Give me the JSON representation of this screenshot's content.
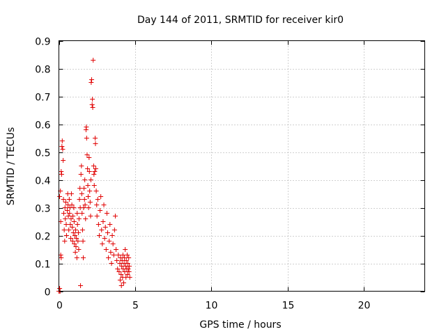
{
  "chart_data": {
    "type": "scatter",
    "title": "Day 144 of 2011, SRMTID for receiver kir0",
    "xlabel": "GPS time / hours",
    "ylabel": "SRMTID / TECUs",
    "xlim": [
      0,
      24
    ],
    "ylim": [
      0,
      0.9
    ],
    "xticks": [
      0,
      5,
      10,
      15,
      20
    ],
    "xtick_labels": [
      "0",
      "5",
      "10",
      "15",
      "20"
    ],
    "yticks": [
      0,
      0.1,
      0.2,
      0.3,
      0.4,
      0.5,
      0.6,
      0.7,
      0.8,
      0.9
    ],
    "ytick_labels": [
      "0",
      "0.1",
      "0.2",
      "0.3",
      "0.4",
      "0.5",
      "0.6",
      "0.7",
      "0.8",
      "0.9"
    ],
    "grid": true,
    "marker": "+",
    "color": "#e00000",
    "series": [
      {
        "name": "kir0",
        "points": [
          [
            0.0,
            0.0
          ],
          [
            0.02,
            0.0
          ],
          [
            0.05,
            0.01
          ],
          [
            0.08,
            0.0
          ],
          [
            0.05,
            0.34
          ],
          [
            0.1,
            0.36
          ],
          [
            0.12,
            0.25
          ],
          [
            0.15,
            0.43
          ],
          [
            0.18,
            0.42
          ],
          [
            0.2,
            0.52
          ],
          [
            0.22,
            0.54
          ],
          [
            0.25,
            0.51
          ],
          [
            0.28,
            0.47
          ],
          [
            0.3,
            0.33
          ],
          [
            0.32,
            0.28
          ],
          [
            0.35,
            0.22
          ],
          [
            0.38,
            0.18
          ],
          [
            0.12,
            0.13
          ],
          [
            0.15,
            0.12
          ],
          [
            0.4,
            0.3
          ],
          [
            0.42,
            0.26
          ],
          [
            0.45,
            0.32
          ],
          [
            0.48,
            0.24
          ],
          [
            0.5,
            0.2
          ],
          [
            0.55,
            0.29
          ],
          [
            0.58,
            0.35
          ],
          [
            0.6,
            0.31
          ],
          [
            0.62,
            0.27
          ],
          [
            0.65,
            0.22
          ],
          [
            0.68,
            0.33
          ],
          [
            0.7,
            0.28
          ],
          [
            0.72,
            0.3
          ],
          [
            0.75,
            0.24
          ],
          [
            0.78,
            0.19
          ],
          [
            0.8,
            0.26
          ],
          [
            0.82,
            0.35
          ],
          [
            0.85,
            0.31
          ],
          [
            0.88,
            0.23
          ],
          [
            0.9,
            0.18
          ],
          [
            0.92,
            0.27
          ],
          [
            0.95,
            0.21
          ],
          [
            0.98,
            0.3
          ],
          [
            1.0,
            0.25
          ],
          [
            1.02,
            0.17
          ],
          [
            1.05,
            0.2
          ],
          [
            1.08,
            0.14
          ],
          [
            1.1,
            0.22
          ],
          [
            1.12,
            0.16
          ],
          [
            1.15,
            0.19
          ],
          [
            1.18,
            0.12
          ],
          [
            1.2,
            0.28
          ],
          [
            1.22,
            0.24
          ],
          [
            1.25,
            0.18
          ],
          [
            1.28,
            0.21
          ],
          [
            1.3,
            0.15
          ],
          [
            1.32,
            0.26
          ],
          [
            1.35,
            0.33
          ],
          [
            1.38,
            0.37
          ],
          [
            1.4,
            0.3
          ],
          [
            1.42,
            0.02
          ],
          [
            1.45,
            0.42
          ],
          [
            1.48,
            0.45
          ],
          [
            1.5,
            0.35
          ],
          [
            1.52,
            0.28
          ],
          [
            1.55,
            0.22
          ],
          [
            1.58,
            0.18
          ],
          [
            1.6,
            0.12
          ],
          [
            1.62,
            0.3
          ],
          [
            1.65,
            0.37
          ],
          [
            1.68,
            0.33
          ],
          [
            1.7,
            0.4
          ],
          [
            1.72,
            0.31
          ],
          [
            1.75,
            0.26
          ],
          [
            1.78,
            0.58
          ],
          [
            1.8,
            0.59
          ],
          [
            1.82,
            0.55
          ],
          [
            1.85,
            0.49
          ],
          [
            1.88,
            0.44
          ],
          [
            1.9,
            0.38
          ],
          [
            1.92,
            0.34
          ],
          [
            1.95,
            0.3
          ],
          [
            1.98,
            0.48
          ],
          [
            2.0,
            0.43
          ],
          [
            2.02,
            0.36
          ],
          [
            2.05,
            0.32
          ],
          [
            2.08,
            0.27
          ],
          [
            2.1,
            0.4
          ],
          [
            2.12,
            0.75
          ],
          [
            2.15,
            0.76
          ],
          [
            2.18,
            0.67
          ],
          [
            2.2,
            0.69
          ],
          [
            2.22,
            0.66
          ],
          [
            2.25,
            0.83
          ],
          [
            2.28,
            0.45
          ],
          [
            2.3,
            0.42
          ],
          [
            2.32,
            0.38
          ],
          [
            2.35,
            0.43
          ],
          [
            2.38,
            0.55
          ],
          [
            2.4,
            0.53
          ],
          [
            2.42,
            0.44
          ],
          [
            2.45,
            0.36
          ],
          [
            2.48,
            0.31
          ],
          [
            2.5,
            0.27
          ],
          [
            2.55,
            0.33
          ],
          [
            2.6,
            0.24
          ],
          [
            2.65,
            0.2
          ],
          [
            2.7,
            0.29
          ],
          [
            2.75,
            0.34
          ],
          [
            2.8,
            0.22
          ],
          [
            2.85,
            0.17
          ],
          [
            2.9,
            0.25
          ],
          [
            2.95,
            0.31
          ],
          [
            3.0,
            0.19
          ],
          [
            3.05,
            0.23
          ],
          [
            3.1,
            0.15
          ],
          [
            3.15,
            0.28
          ],
          [
            3.2,
            0.21
          ],
          [
            3.25,
            0.12
          ],
          [
            3.3,
            0.18
          ],
          [
            3.35,
            0.24
          ],
          [
            3.4,
            0.14
          ],
          [
            3.45,
            0.1
          ],
          [
            3.5,
            0.2
          ],
          [
            3.55,
            0.17
          ],
          [
            3.6,
            0.13
          ],
          [
            3.65,
            0.22
          ],
          [
            3.7,
            0.27
          ],
          [
            3.75,
            0.15
          ],
          [
            3.8,
            0.11
          ],
          [
            3.85,
            0.08
          ],
          [
            3.9,
            0.13
          ],
          [
            3.95,
            0.07
          ],
          [
            4.0,
            0.1
          ],
          [
            4.02,
            0.04
          ],
          [
            4.05,
            0.12
          ],
          [
            4.08,
            0.06
          ],
          [
            4.1,
            0.02
          ],
          [
            4.12,
            0.09
          ],
          [
            4.15,
            0.11
          ],
          [
            4.18,
            0.05
          ],
          [
            4.2,
            0.13
          ],
          [
            4.22,
            0.08
          ],
          [
            4.25,
            0.03
          ],
          [
            4.28,
            0.1
          ],
          [
            4.3,
            0.12
          ],
          [
            4.32,
            0.07
          ],
          [
            4.35,
            0.15
          ],
          [
            4.38,
            0.09
          ],
          [
            4.4,
            0.05
          ],
          [
            4.42,
            0.11
          ],
          [
            4.45,
            0.08
          ],
          [
            4.48,
            0.13
          ],
          [
            4.5,
            0.06
          ],
          [
            4.52,
            0.1
          ],
          [
            4.55,
            0.08
          ],
          [
            4.58,
            0.12
          ],
          [
            4.6,
            0.07
          ],
          [
            4.62,
            0.09
          ],
          [
            4.65,
            0.05
          ]
        ]
      }
    ]
  }
}
